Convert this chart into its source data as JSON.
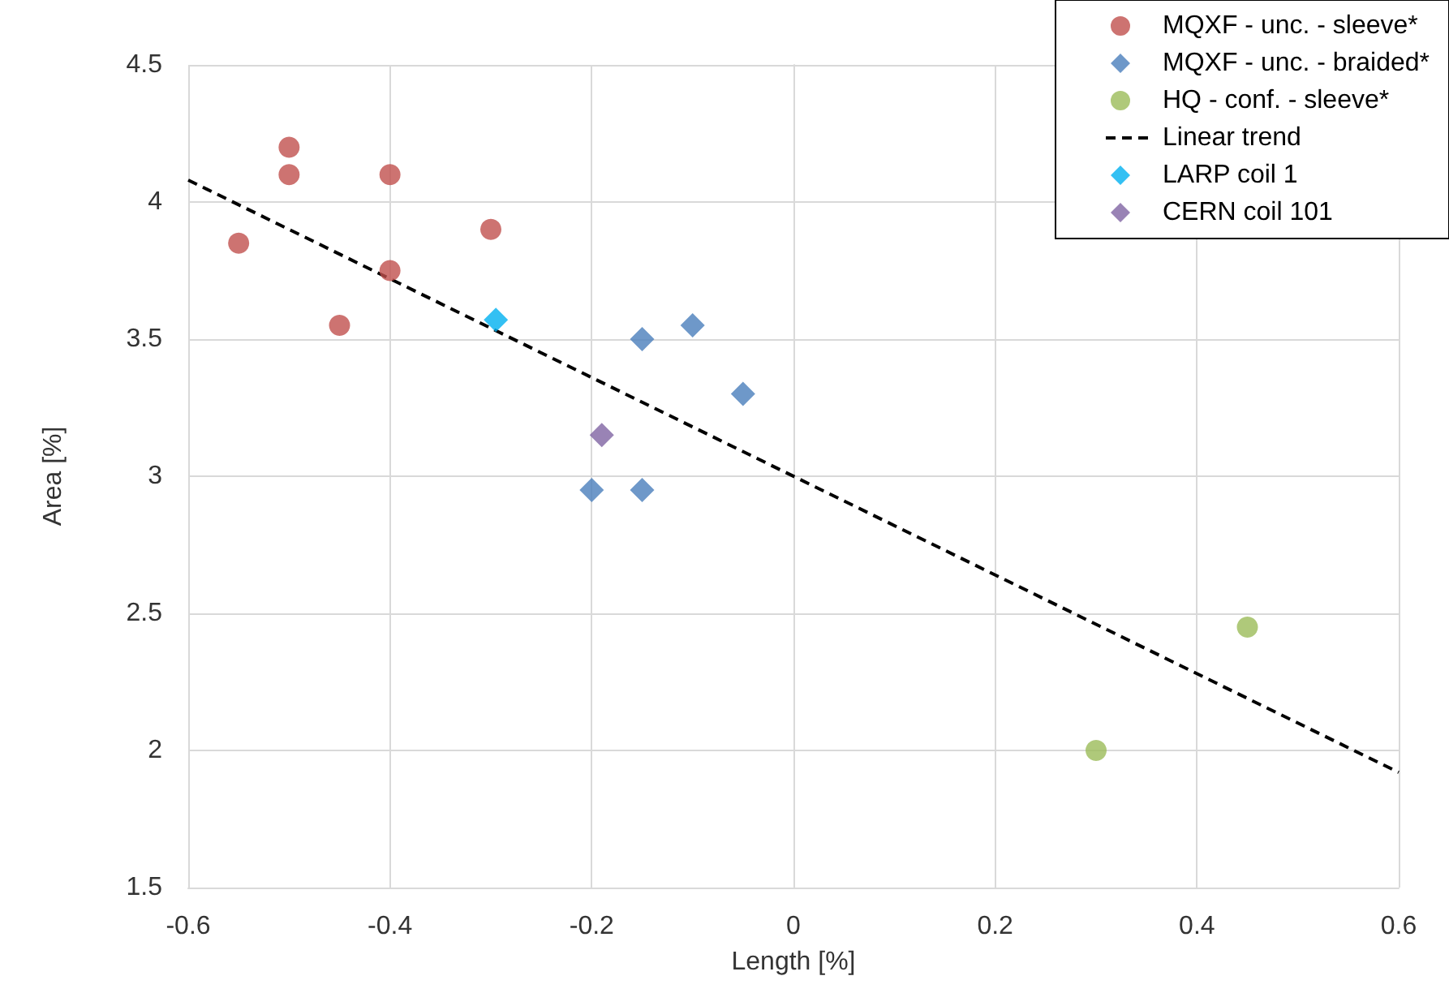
{
  "chart_data": {
    "type": "scatter",
    "xlabel": "Length [%]",
    "ylabel": "Area [%]",
    "xlim": [
      -0.6,
      0.6
    ],
    "xticks": [
      -0.6,
      -0.4,
      -0.2,
      0,
      0.2,
      0.4,
      0.6
    ],
    "ylim": [
      1.5,
      4.5
    ],
    "yticks": [
      1.5,
      2,
      2.5,
      3,
      3.5,
      4,
      4.5
    ],
    "grid": true,
    "legend": "top right",
    "series": [
      {
        "name": "MQXF - unc. - sleeve*",
        "color": "#c0504d",
        "marker": "circle",
        "x": [
          -0.55,
          -0.5,
          -0.5,
          -0.45,
          -0.4,
          -0.4,
          -0.3
        ],
        "values": [
          3.85,
          4.2,
          4.1,
          3.55,
          4.1,
          3.75,
          3.9
        ]
      },
      {
        "name": "MQXF - unc. - braided*",
        "color": "#4a7ebb",
        "marker": "diamond",
        "x": [
          -0.2,
          -0.15,
          -0.15,
          -0.1,
          -0.05
        ],
        "values": [
          2.95,
          2.95,
          3.5,
          3.55,
          3.3
        ]
      },
      {
        "name": "HQ - conf. - sleeve*",
        "color": "#9bbb59",
        "marker": "circle",
        "x": [
          0.3,
          0.45
        ],
        "values": [
          2.0,
          2.45
        ]
      },
      {
        "name": "Linear trend",
        "type": "line",
        "color": "#000000",
        "marker": "none",
        "line_style": "dashed",
        "x": [
          -0.6,
          0.6
        ],
        "values": [
          4.08,
          1.92
        ]
      },
      {
        "name": "LARP coil 1",
        "color": "#00b0f0",
        "marker": "diamond",
        "x": [
          -0.295
        ],
        "values": [
          3.57
        ]
      },
      {
        "name": "CERN coil 101",
        "color": "#8064a2",
        "marker": "diamond",
        "x": [
          -0.19
        ],
        "values": [
          3.15
        ]
      }
    ]
  }
}
